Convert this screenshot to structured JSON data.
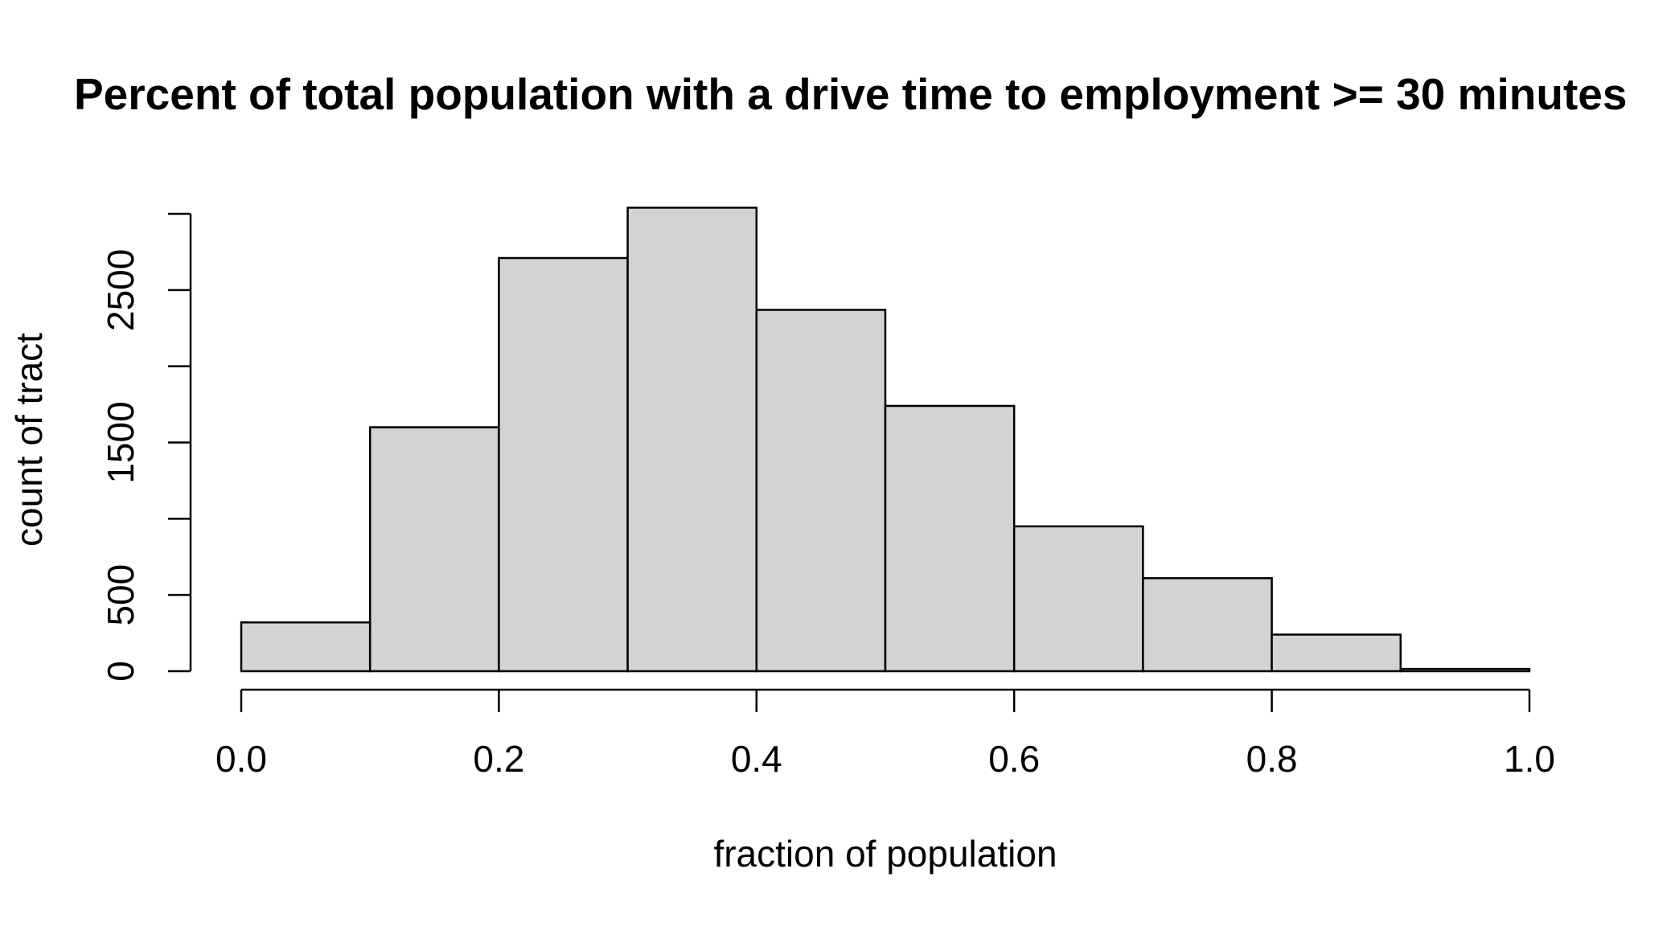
{
  "chart_data": {
    "type": "bar",
    "subtype": "histogram",
    "title": "Percent of total population with a drive time to employment >= 30 minutes",
    "xlabel": "fraction of population",
    "ylabel": "count of tract",
    "bins": [
      {
        "start": 0.0,
        "end": 0.1,
        "count": 320
      },
      {
        "start": 0.1,
        "end": 0.2,
        "count": 1600
      },
      {
        "start": 0.2,
        "end": 0.3,
        "count": 2710
      },
      {
        "start": 0.3,
        "end": 0.4,
        "count": 3040
      },
      {
        "start": 0.4,
        "end": 0.5,
        "count": 2370
      },
      {
        "start": 0.5,
        "end": 0.6,
        "count": 1740
      },
      {
        "start": 0.6,
        "end": 0.7,
        "count": 950
      },
      {
        "start": 0.7,
        "end": 0.8,
        "count": 610
      },
      {
        "start": 0.8,
        "end": 0.9,
        "count": 240
      },
      {
        "start": 0.9,
        "end": 1.0,
        "count": 15
      }
    ],
    "x_ticks": [
      {
        "value": 0.0,
        "label": "0.0"
      },
      {
        "value": 0.2,
        "label": "0.2"
      },
      {
        "value": 0.4,
        "label": "0.4"
      },
      {
        "value": 0.6,
        "label": "0.6"
      },
      {
        "value": 0.8,
        "label": "0.8"
      },
      {
        "value": 1.0,
        "label": "1.0"
      }
    ],
    "y_ticks": [
      {
        "value": 0,
        "label": "0"
      },
      {
        "value": 500,
        "label": "500"
      },
      {
        "value": 1000,
        "label": ""
      },
      {
        "value": 1500,
        "label": "1500"
      },
      {
        "value": 2000,
        "label": ""
      },
      {
        "value": 2500,
        "label": "2500"
      },
      {
        "value": 3000,
        "label": ""
      }
    ],
    "xlim": [
      0.0,
      1.0
    ],
    "ylim": [
      0,
      3000
    ],
    "bar_color": "#d3d3d3",
    "edge_color": "#000000",
    "grid": false,
    "legend": "none"
  }
}
